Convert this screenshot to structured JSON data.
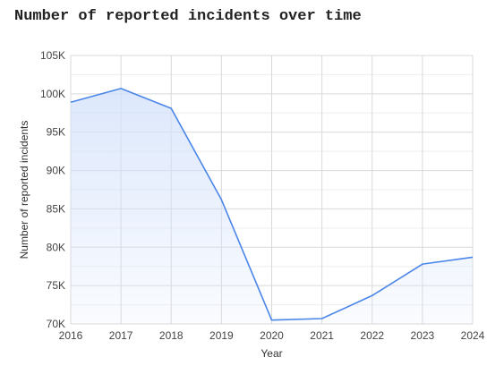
{
  "chart_data": {
    "type": "area",
    "title": "Number of reported incidents over time",
    "xlabel": "Year",
    "ylabel": "Number of reported incidents",
    "x": [
      2016,
      2017,
      2018,
      2019,
      2020,
      2021,
      2022,
      2023,
      2024
    ],
    "series": [
      {
        "values": [
          98900,
          100700,
          98100,
          86200,
          70500,
          70700,
          73700,
          77800,
          78700
        ]
      }
    ],
    "xlim": [
      2016,
      2024
    ],
    "ylim": [
      70000,
      105000
    ],
    "y_ticks": [
      70000,
      75000,
      80000,
      85000,
      90000,
      95000,
      100000,
      105000
    ],
    "y_tick_labels": [
      "70K",
      "75K",
      "80K",
      "85K",
      "90K",
      "95K",
      "100K",
      "105K"
    ],
    "x_tick_labels": [
      "2016",
      "2017",
      "2018",
      "2019",
      "2020",
      "2021",
      "2022",
      "2023",
      "2024"
    ],
    "grid": true,
    "legend": "none",
    "colors": {
      "line": "#4a86e8",
      "fill": "#d4e2fb",
      "grid": "#dddddd"
    }
  }
}
